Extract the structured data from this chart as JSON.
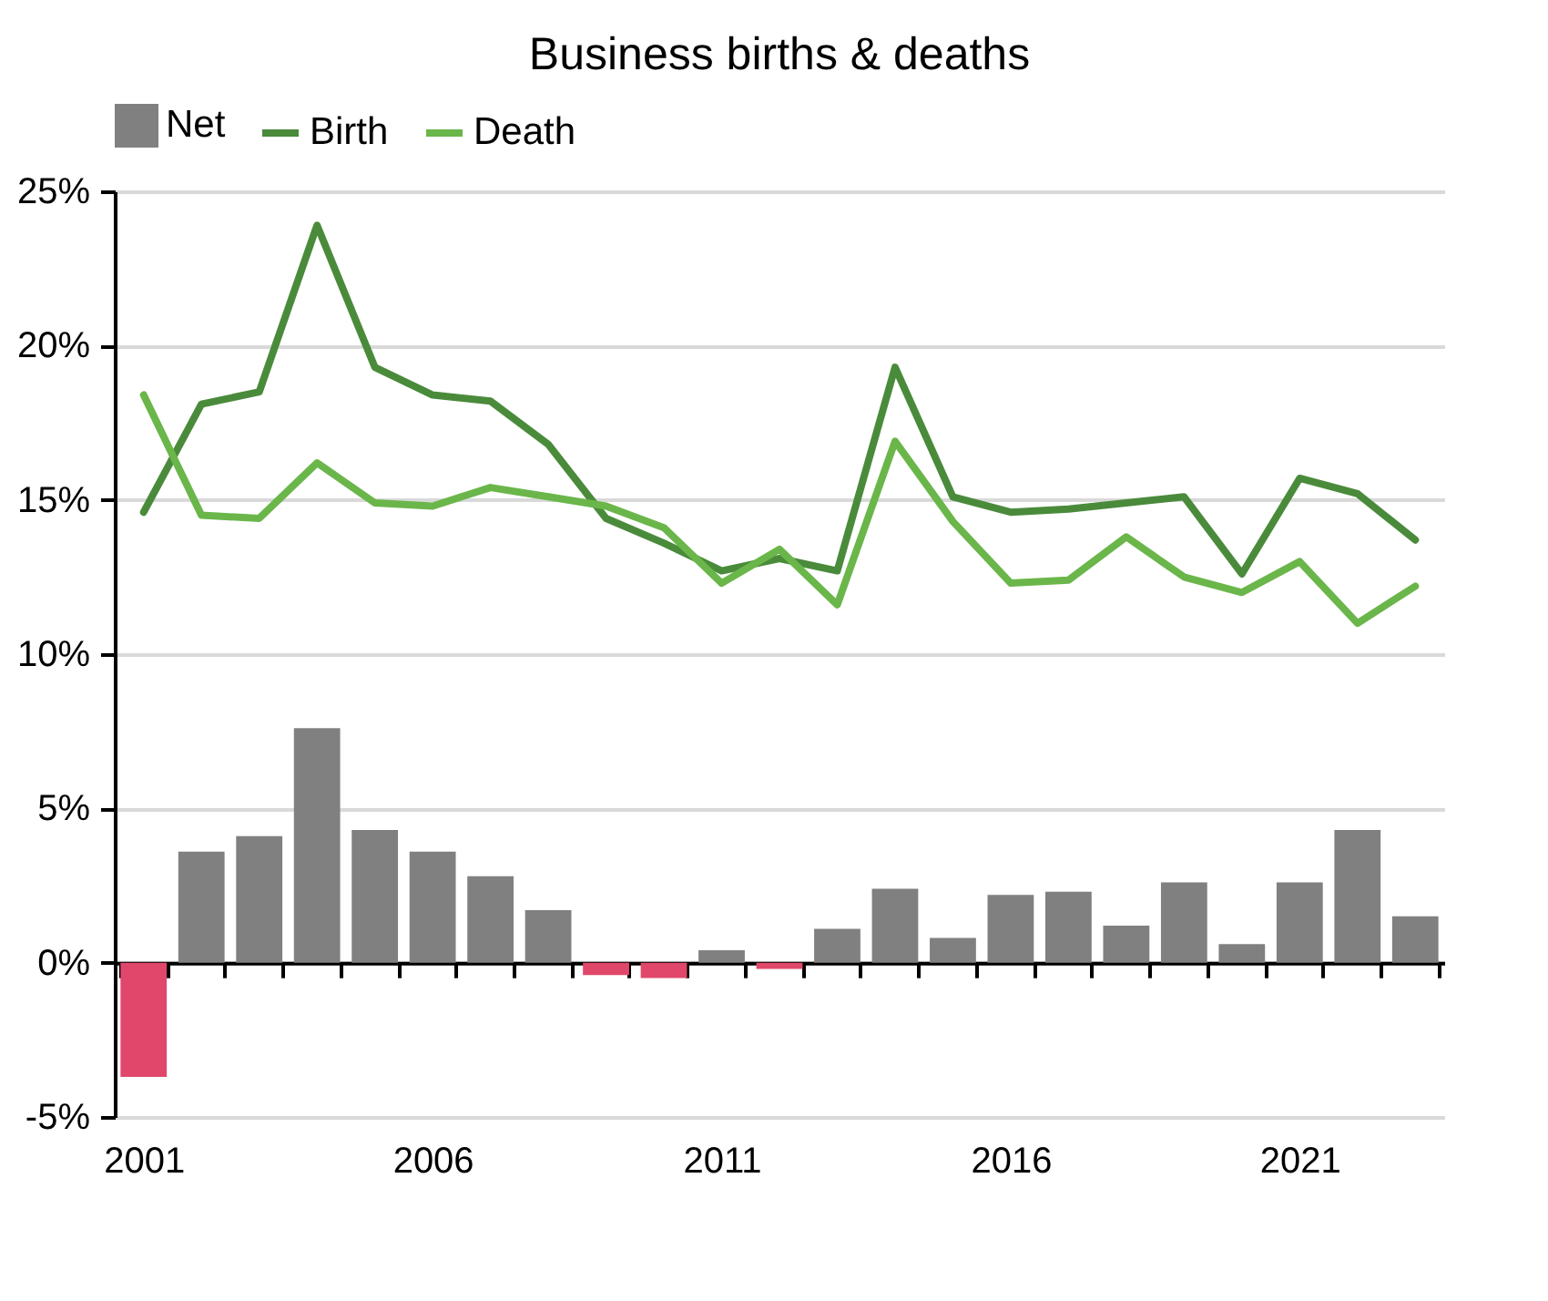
{
  "chart_data": {
    "type": "bar",
    "title": "Business births & deaths",
    "categories": [
      "2001",
      null,
      null,
      null,
      null,
      "2006",
      null,
      null,
      null,
      null,
      "2011",
      null,
      null,
      null,
      null,
      "2016",
      null,
      null,
      null,
      null,
      "2021",
      null,
      null
    ],
    "series": [
      {
        "name": "Net",
        "color": "#808080",
        "colors": [
          "#e0476a",
          "#808080",
          "#808080",
          "#808080",
          "#808080",
          "#808080",
          "#808080",
          "#808080",
          "#e0476a",
          "#e0476a",
          "#808080",
          "#e0476a",
          "#808080",
          "#808080",
          "#808080",
          "#808080",
          "#808080",
          "#808080",
          "#808080",
          "#808080",
          "#808080",
          "#808080",
          "#808080"
        ],
        "values": [
          -3.7,
          3.6,
          4.1,
          7.6,
          4.3,
          3.6,
          2.8,
          1.7,
          -0.4,
          -0.5,
          0.4,
          -0.2,
          1.1,
          2.4,
          0.8,
          2.2,
          2.3,
          1.2,
          2.6,
          0.6,
          2.6,
          4.3,
          1.5
        ]
      },
      {
        "name": "Birth",
        "type": "line",
        "color": "#4a8b3b",
        "values": [
          14.6,
          18.1,
          18.5,
          23.9,
          19.3,
          18.4,
          18.2,
          16.8,
          14.4,
          13.6,
          12.7,
          13.1,
          12.7,
          19.3,
          15.1,
          14.6,
          14.7,
          14.9,
          15.1,
          12.6,
          15.7,
          15.2,
          13.7
        ]
      },
      {
        "name": "Death",
        "type": "line",
        "color": "#6ab64a",
        "values": [
          18.4,
          14.5,
          14.4,
          16.2,
          14.9,
          14.8,
          15.4,
          15.1,
          14.8,
          14.1,
          12.3,
          13.4,
          11.6,
          16.9,
          14.3,
          12.3,
          12.4,
          13.8,
          12.5,
          12.0,
          13.0,
          11.0,
          12.2
        ]
      }
    ],
    "ylim": [
      -5,
      25
    ],
    "yticks": [
      {
        "value": -5,
        "label": "-5%"
      },
      {
        "value": 0,
        "label": "0%"
      },
      {
        "value": 5,
        "label": "5%"
      },
      {
        "value": 10,
        "label": "10%"
      },
      {
        "value": 15,
        "label": "15%"
      },
      {
        "value": 20,
        "label": "20%"
      },
      {
        "value": 25,
        "label": "25%"
      }
    ],
    "grid": "y",
    "legend": "top",
    "line_style": "solid",
    "marker": "none"
  }
}
